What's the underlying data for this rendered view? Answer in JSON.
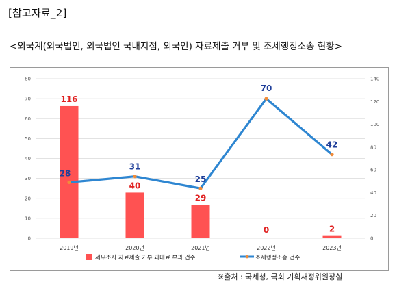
{
  "doc_label": "[참고자료_2]",
  "doc_title": "<외국계(외국법인, 외국법인 국내지점, 외국인) 자료제출 거부 및 조세행정소송 현황>",
  "footer_note": "※출처 : 국세청, 국회 기획재정위원장실",
  "colors": {
    "bar": "#ff5252",
    "line": "#2e86d1",
    "marker": "#f08c3a",
    "bar_label": "#e02020",
    "line_label": "#1f3f9a"
  },
  "chart_data": {
    "type": "bar+line",
    "categories": [
      "2019년",
      "2020년",
      "2021년",
      "2022년",
      "2023년"
    ],
    "left_axis": {
      "min": 0,
      "max": 80,
      "ticks": [
        0,
        10,
        20,
        30,
        40,
        50,
        60,
        70,
        80
      ]
    },
    "right_axis": {
      "min": 0,
      "max": 140,
      "ticks": [
        0,
        20,
        40,
        60,
        80,
        100,
        120,
        140
      ]
    },
    "series": [
      {
        "name": "세무조사 자료제출 거부 과태료 부과 건수",
        "type": "bar",
        "axis": "right",
        "values": [
          116,
          40,
          29,
          0,
          2
        ]
      },
      {
        "name": "조세행정소송 건수",
        "type": "line",
        "axis": "left",
        "values": [
          28,
          31,
          25,
          70,
          42
        ]
      }
    ],
    "legend_position": "bottom",
    "grid": true
  }
}
